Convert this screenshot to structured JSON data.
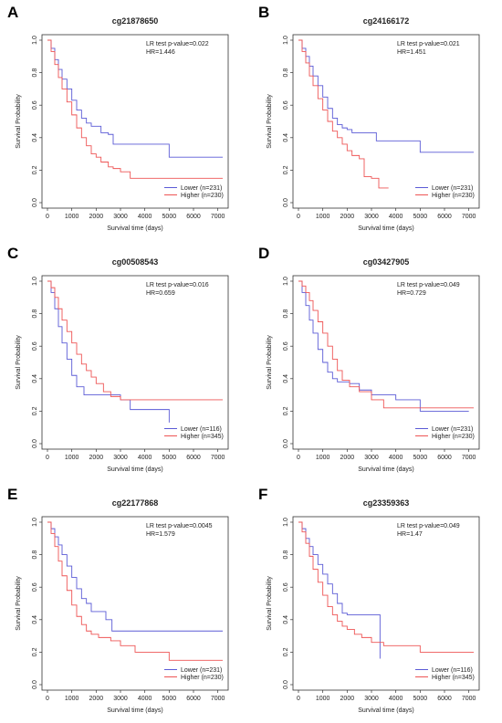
{
  "figure": {
    "colors": {
      "lower": "#5b5bd6",
      "higher": "#ee5555"
    }
  },
  "panels": [
    {
      "letter": "A",
      "title": "cg21878650",
      "pvalue": "LR test p-value=0.022",
      "hr": "HR=1.446",
      "legend": [
        "Lower (n=231)",
        "Higher (n=230)"
      ]
    },
    {
      "letter": "B",
      "title": "cg24166172",
      "pvalue": "LR test p-value=0.021",
      "hr": "HR=1.451",
      "legend": [
        "Lower (n=231)",
        "Higher (n=230)"
      ]
    },
    {
      "letter": "C",
      "title": "cg00508543",
      "pvalue": "LR test p-value=0.016",
      "hr": "HR=0.659",
      "legend": [
        "Lower (n=116)",
        "Higher (n=345)"
      ]
    },
    {
      "letter": "D",
      "title": "cg03427905",
      "pvalue": "LR test p-value=0.049",
      "hr": "HR=0.729",
      "legend": [
        "Lower (n=231)",
        "Higher (n=230)"
      ]
    },
    {
      "letter": "E",
      "title": "cg22177868",
      "pvalue": "LR test p-value=0.0045",
      "hr": "HR=1.579",
      "legend": [
        "Lower (n=231)",
        "Higher (n=230)"
      ]
    },
    {
      "letter": "F",
      "title": "cg23359363",
      "pvalue": "LR test p-value=0.049",
      "hr": "HR=1.47",
      "legend": [
        "Lower (n=116)",
        "Higher (n=345)"
      ]
    }
  ],
  "chart_data": [
    {
      "type": "line",
      "title": "cg21878650",
      "xlabel": "Survival time (days)",
      "ylabel": "Survival Probability",
      "xlim": [
        0,
        7200
      ],
      "ylim": [
        0,
        1
      ],
      "xticks": [
        0,
        1000,
        2000,
        3000,
        4000,
        5000,
        6000,
        7000
      ],
      "yticks": [
        0.0,
        0.2,
        0.4,
        0.6,
        0.8,
        1.0
      ],
      "legend_position": "bottom-right",
      "grid": false,
      "series": [
        {
          "name": "Lower (n=231)",
          "color": "#5b5bd6",
          "x": [
            0,
            150,
            300,
            450,
            600,
            800,
            1000,
            1200,
            1400,
            1600,
            1800,
            2000,
            2200,
            2500,
            2700,
            3000,
            4000,
            5000,
            5500,
            7200
          ],
          "y": [
            1.0,
            0.95,
            0.88,
            0.82,
            0.76,
            0.7,
            0.63,
            0.57,
            0.52,
            0.49,
            0.47,
            0.47,
            0.43,
            0.42,
            0.36,
            0.36,
            0.36,
            0.28,
            0.28,
            0.28
          ]
        },
        {
          "name": "Higher (n=230)",
          "color": "#ee5555",
          "x": [
            0,
            150,
            300,
            450,
            600,
            800,
            1000,
            1200,
            1400,
            1600,
            1800,
            2000,
            2200,
            2500,
            2700,
            3000,
            3400,
            4000,
            5000,
            7200
          ],
          "y": [
            1.0,
            0.93,
            0.85,
            0.77,
            0.7,
            0.62,
            0.54,
            0.46,
            0.4,
            0.35,
            0.3,
            0.28,
            0.25,
            0.22,
            0.21,
            0.19,
            0.15,
            0.15,
            0.15,
            0.15
          ]
        }
      ]
    },
    {
      "type": "line",
      "title": "cg24166172",
      "xlabel": "Survival time (days)",
      "ylabel": "Survival Probability",
      "xlim": [
        0,
        7200
      ],
      "ylim": [
        0,
        1
      ],
      "xticks": [
        0,
        1000,
        2000,
        3000,
        4000,
        5000,
        6000,
        7000
      ],
      "yticks": [
        0.0,
        0.2,
        0.4,
        0.6,
        0.8,
        1.0
      ],
      "legend_position": "bottom-right",
      "grid": false,
      "series": [
        {
          "name": "Lower (n=231)",
          "color": "#5b5bd6",
          "x": [
            0,
            150,
            300,
            450,
            600,
            800,
            1000,
            1200,
            1400,
            1600,
            1800,
            2000,
            2200,
            2500,
            2800,
            3200,
            4000,
            5000,
            7200
          ],
          "y": [
            1.0,
            0.95,
            0.9,
            0.84,
            0.78,
            0.72,
            0.65,
            0.58,
            0.52,
            0.48,
            0.46,
            0.45,
            0.43,
            0.43,
            0.43,
            0.38,
            0.38,
            0.31,
            0.31
          ]
        },
        {
          "name": "Higher (n=230)",
          "color": "#ee5555",
          "x": [
            0,
            150,
            300,
            450,
            600,
            800,
            1000,
            1200,
            1400,
            1600,
            1800,
            2000,
            2200,
            2500,
            2700,
            3000,
            3300,
            3700
          ],
          "y": [
            1.0,
            0.93,
            0.86,
            0.78,
            0.72,
            0.64,
            0.57,
            0.5,
            0.44,
            0.4,
            0.36,
            0.32,
            0.29,
            0.27,
            0.16,
            0.15,
            0.09,
            0.09
          ]
        }
      ]
    },
    {
      "type": "line",
      "title": "cg00508543",
      "xlabel": "Survival time (days)",
      "ylabel": "Survival Probability",
      "xlim": [
        0,
        7200
      ],
      "ylim": [
        0,
        1
      ],
      "xticks": [
        0,
        1000,
        2000,
        3000,
        4000,
        5000,
        6000,
        7000
      ],
      "yticks": [
        0.0,
        0.2,
        0.4,
        0.6,
        0.8,
        1.0
      ],
      "legend_position": "bottom-right",
      "grid": false,
      "series": [
        {
          "name": "Lower (n=116)",
          "color": "#5b5bd6",
          "x": [
            0,
            150,
            300,
            450,
            600,
            800,
            1000,
            1200,
            1500,
            1800,
            2200,
            2600,
            3000,
            3400,
            4000,
            5000,
            5001
          ],
          "y": [
            1.0,
            0.93,
            0.83,
            0.72,
            0.62,
            0.52,
            0.42,
            0.35,
            0.3,
            0.3,
            0.3,
            0.3,
            0.27,
            0.21,
            0.21,
            0.21,
            0.13
          ]
        },
        {
          "name": "Higher (n=345)",
          "color": "#ee5555",
          "x": [
            0,
            150,
            300,
            450,
            600,
            800,
            1000,
            1200,
            1400,
            1600,
            1800,
            2000,
            2300,
            2600,
            3000,
            4000,
            5000,
            7200
          ],
          "y": [
            1.0,
            0.96,
            0.9,
            0.83,
            0.76,
            0.69,
            0.62,
            0.55,
            0.49,
            0.45,
            0.41,
            0.37,
            0.32,
            0.29,
            0.27,
            0.27,
            0.27,
            0.27
          ]
        }
      ]
    },
    {
      "type": "line",
      "title": "cg03427905",
      "xlabel": "Survival time (days)",
      "ylabel": "Survival Probability",
      "xlim": [
        0,
        7200
      ],
      "ylim": [
        0,
        1
      ],
      "xticks": [
        0,
        1000,
        2000,
        3000,
        4000,
        5000,
        6000,
        7000
      ],
      "yticks": [
        0.0,
        0.2,
        0.4,
        0.6,
        0.8,
        1.0
      ],
      "legend_position": "bottom-right",
      "grid": false,
      "series": [
        {
          "name": "Lower (n=231)",
          "color": "#5b5bd6",
          "x": [
            0,
            150,
            300,
            450,
            600,
            800,
            1000,
            1200,
            1400,
            1600,
            1800,
            2100,
            2500,
            3000,
            4000,
            5000,
            6000,
            7000
          ],
          "y": [
            1.0,
            0.93,
            0.85,
            0.76,
            0.68,
            0.58,
            0.5,
            0.44,
            0.4,
            0.38,
            0.38,
            0.37,
            0.33,
            0.3,
            0.27,
            0.2,
            0.2,
            0.2
          ]
        },
        {
          "name": "Higher (n=230)",
          "color": "#ee5555",
          "x": [
            0,
            150,
            300,
            450,
            600,
            800,
            1000,
            1200,
            1400,
            1600,
            1800,
            2100,
            2500,
            3000,
            3500,
            4000,
            5000,
            7200
          ],
          "y": [
            1.0,
            0.97,
            0.93,
            0.88,
            0.82,
            0.75,
            0.68,
            0.6,
            0.52,
            0.45,
            0.39,
            0.35,
            0.32,
            0.27,
            0.22,
            0.22,
            0.22,
            0.22
          ]
        }
      ]
    },
    {
      "type": "line",
      "title": "cg22177868",
      "xlabel": "Survival time (days)",
      "ylabel": "Survival Probability",
      "xlim": [
        0,
        7200
      ],
      "ylim": [
        0,
        1
      ],
      "xticks": [
        0,
        1000,
        2000,
        3000,
        4000,
        5000,
        6000,
        7000
      ],
      "yticks": [
        0.0,
        0.2,
        0.4,
        0.6,
        0.8,
        1.0
      ],
      "legend_position": "bottom-right",
      "grid": false,
      "series": [
        {
          "name": "Lower (n=231)",
          "color": "#5b5bd6",
          "x": [
            0,
            150,
            300,
            450,
            600,
            800,
            1000,
            1200,
            1400,
            1600,
            1800,
            2100,
            2400,
            2650,
            3000,
            4000,
            5000,
            7200
          ],
          "y": [
            1.0,
            0.96,
            0.91,
            0.86,
            0.8,
            0.73,
            0.66,
            0.59,
            0.53,
            0.5,
            0.45,
            0.45,
            0.4,
            0.33,
            0.33,
            0.33,
            0.33,
            0.33
          ]
        },
        {
          "name": "Higher (n=230)",
          "color": "#ee5555",
          "x": [
            0,
            150,
            300,
            450,
            600,
            800,
            1000,
            1200,
            1400,
            1600,
            1800,
            2100,
            2600,
            3000,
            3600,
            4000,
            5000,
            7200
          ],
          "y": [
            1.0,
            0.93,
            0.85,
            0.76,
            0.67,
            0.58,
            0.49,
            0.42,
            0.37,
            0.33,
            0.31,
            0.29,
            0.27,
            0.24,
            0.2,
            0.2,
            0.15,
            0.15
          ]
        }
      ]
    },
    {
      "type": "line",
      "title": "cg23359363",
      "xlabel": "Survival time (days)",
      "ylabel": "Survival Probability",
      "xlim": [
        0,
        7200
      ],
      "ylim": [
        0,
        1
      ],
      "xticks": [
        0,
        1000,
        2000,
        3000,
        4000,
        5000,
        6000,
        7000
      ],
      "yticks": [
        0.0,
        0.2,
        0.4,
        0.6,
        0.8,
        1.0
      ],
      "legend_position": "bottom-right",
      "grid": false,
      "series": [
        {
          "name": "Lower (n=116)",
          "color": "#5b5bd6",
          "x": [
            0,
            150,
            300,
            450,
            600,
            800,
            1000,
            1200,
            1400,
            1600,
            1800,
            2000,
            2500,
            3000,
            3350,
            3351
          ],
          "y": [
            1.0,
            0.96,
            0.9,
            0.85,
            0.8,
            0.74,
            0.68,
            0.62,
            0.56,
            0.5,
            0.44,
            0.43,
            0.43,
            0.43,
            0.43,
            0.16
          ]
        },
        {
          "name": "Higher (n=345)",
          "color": "#ee5555",
          "x": [
            0,
            150,
            300,
            450,
            600,
            800,
            1000,
            1200,
            1400,
            1600,
            1800,
            2000,
            2300,
            2600,
            3000,
            3500,
            4000,
            5000,
            7200
          ],
          "y": [
            1.0,
            0.94,
            0.87,
            0.79,
            0.71,
            0.63,
            0.55,
            0.48,
            0.43,
            0.39,
            0.36,
            0.34,
            0.31,
            0.29,
            0.26,
            0.24,
            0.24,
            0.2,
            0.2
          ]
        }
      ]
    }
  ]
}
